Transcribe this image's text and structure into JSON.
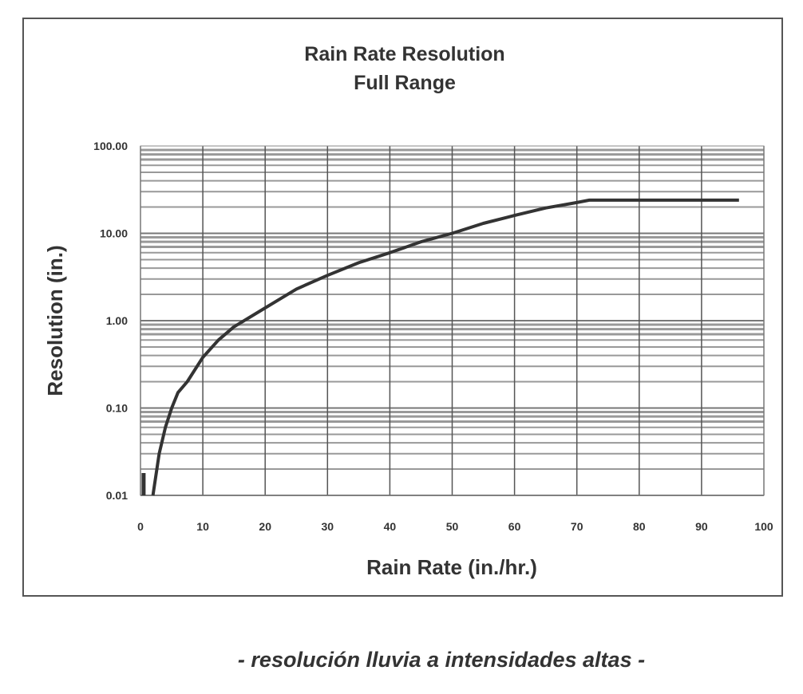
{
  "chart_data": {
    "type": "line",
    "title": "Rain Rate Resolution",
    "subtitle": "Full Range",
    "xlabel": "Rain Rate (in./hr.)",
    "ylabel": "Resolution (in.)",
    "xlim": [
      0,
      100
    ],
    "ylim": [
      0.01,
      100
    ],
    "yscale": "log",
    "grid": true,
    "x_ticks": [
      "0",
      "10",
      "20",
      "30",
      "40",
      "50",
      "60",
      "70",
      "80",
      "90",
      "100"
    ],
    "y_ticks": [
      "0.01",
      "0.10",
      "1.00",
      "10.00",
      "100.00"
    ],
    "y_tick_values": [
      0.01,
      0.1,
      1,
      10,
      100
    ],
    "series": [
      {
        "name": "Resolution",
        "x": [
          2,
          3,
          4,
          5,
          6,
          7.5,
          10,
          12.5,
          15,
          20,
          25,
          30,
          35,
          40,
          45,
          50,
          55,
          60,
          65,
          70,
          72,
          80,
          90,
          96
        ],
        "y": [
          0.01,
          0.03,
          0.06,
          0.1,
          0.15,
          0.2,
          0.38,
          0.6,
          0.85,
          1.4,
          2.3,
          3.3,
          4.6,
          6.0,
          8.0,
          10.0,
          13.0,
          16.0,
          19.5,
          22.5,
          24,
          24,
          24,
          24
        ]
      },
      {
        "name": "Low-end bar",
        "x": [
          0.5,
          0.5
        ],
        "y": [
          0.01,
          0.018
        ]
      }
    ]
  },
  "caption": "- resolución lluvia a intensidades altas -"
}
